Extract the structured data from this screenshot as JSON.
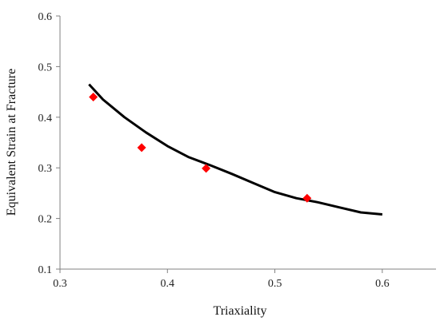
{
  "chart_data": {
    "type": "scatter",
    "title": "",
    "xlabel": "Triaxiality",
    "ylabel": "Equivalent Strain at Fracture",
    "xlim": [
      0.3,
      0.65
    ],
    "ylim": [
      0.1,
      0.6
    ],
    "xticks": [
      "0.3",
      "0.4",
      "0.5",
      "0.6"
    ],
    "xtick_values": [
      0.3,
      0.4,
      0.5,
      0.6
    ],
    "yticks": [
      "0.1",
      "0.2",
      "0.3",
      "0.4",
      "0.5",
      "0.6"
    ],
    "ytick_values": [
      0.1,
      0.2,
      0.3,
      0.4,
      0.5,
      0.6
    ],
    "grid": false,
    "legend": "none",
    "series": [
      {
        "kind": "line",
        "color": "#000000",
        "x": [
          0.327,
          0.34,
          0.36,
          0.38,
          0.4,
          0.42,
          0.44,
          0.46,
          0.48,
          0.5,
          0.52,
          0.54,
          0.56,
          0.58,
          0.6
        ],
        "y": [
          0.465,
          0.435,
          0.4,
          0.37,
          0.343,
          0.321,
          0.305,
          0.288,
          0.27,
          0.252,
          0.24,
          0.232,
          0.222,
          0.212,
          0.208
        ]
      },
      {
        "kind": "markers",
        "marker": "diamond",
        "color": "#ff0000",
        "x": [
          0.331,
          0.376,
          0.436,
          0.53
        ],
        "y": [
          0.44,
          0.34,
          0.299,
          0.24
        ]
      }
    ]
  }
}
